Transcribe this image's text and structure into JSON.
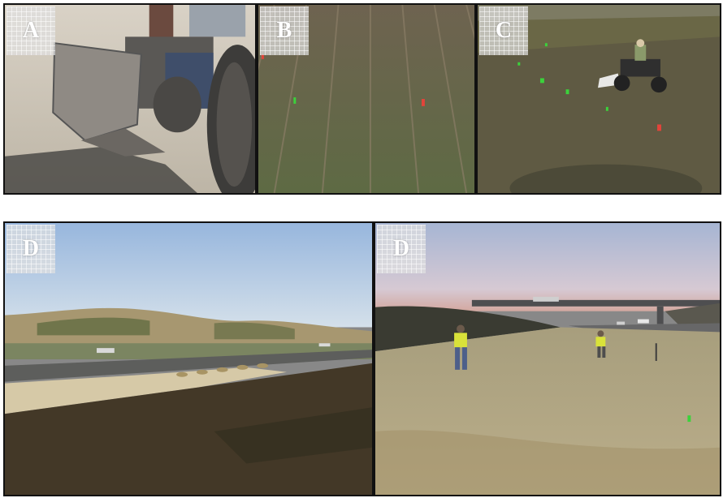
{
  "panels": [
    {
      "id": "A",
      "label": "A"
    },
    {
      "id": "B",
      "label": "B"
    },
    {
      "id": "C",
      "label": "C"
    },
    {
      "id": "D1",
      "label": "D"
    },
    {
      "id": "D2",
      "label": "D"
    }
  ]
}
